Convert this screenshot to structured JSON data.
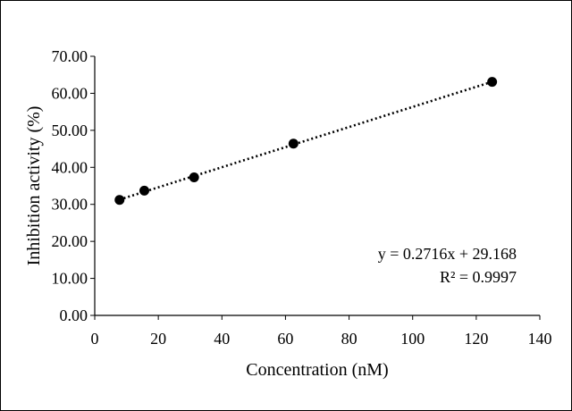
{
  "chart_data": {
    "type": "scatter",
    "title": "",
    "xlabel": "Concentration (nM)",
    "ylabel": "Inhibition activity (%)",
    "xlim": [
      0,
      140
    ],
    "ylim": [
      0,
      70
    ],
    "x_ticks": [
      0,
      20,
      40,
      60,
      80,
      100,
      120,
      140
    ],
    "y_ticks": [
      "0.00",
      "10.00",
      "20.00",
      "30.00",
      "40.00",
      "50.00",
      "60.00",
      "70.00"
    ],
    "grid": false,
    "legend": "none",
    "series": [
      {
        "x": [
          7.8,
          15.6,
          31.25,
          62.5,
          125
        ],
        "y": [
          31.2,
          33.7,
          37.3,
          46.4,
          63.1
        ],
        "marker": "circle",
        "color": "#000000"
      }
    ],
    "trendline": {
      "style": "dotted",
      "color": "#000000",
      "slope": 0.2716,
      "intercept": 29.168,
      "x_range": [
        7.8,
        125
      ]
    },
    "annotations": {
      "equation": "y = 0.2716x + 29.168",
      "r_squared": "R² = 0.9997"
    }
  }
}
